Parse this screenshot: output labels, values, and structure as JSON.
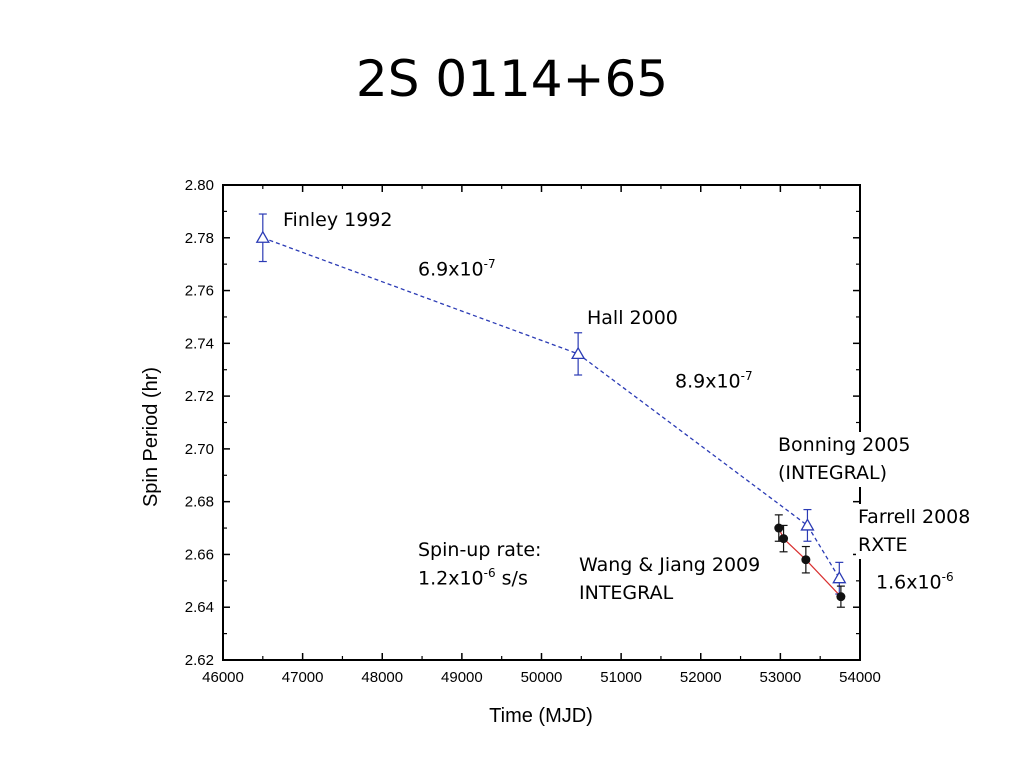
{
  "slide": {
    "title": "2S 0114+65"
  },
  "chart_data": {
    "type": "scatter",
    "xlabel": "Time (MJD)",
    "ylabel": "Spin Period (hr)",
    "xlim": [
      46000,
      54000
    ],
    "ylim": [
      2.62,
      2.8
    ],
    "xticks": [
      "46000",
      "47000",
      "48000",
      "49000",
      "50000",
      "51000",
      "52000",
      "53000",
      "54000"
    ],
    "yticks": [
      "2.62",
      "2.64",
      "2.66",
      "2.68",
      "2.70",
      "2.72",
      "2.74",
      "2.76",
      "2.78",
      "2.80"
    ],
    "series": [
      {
        "marker": "open-triangle",
        "color": "#2b3bb5",
        "line": "dashed",
        "points": [
          {
            "x": 46500,
            "y": 2.78,
            "err": 0.009
          },
          {
            "x": 50460,
            "y": 2.736,
            "err": 0.008
          },
          {
            "x": 53340,
            "y": 2.671,
            "err": 0.006
          },
          {
            "x": 53740,
            "y": 2.651,
            "err": 0.006
          }
        ]
      },
      {
        "marker": "filled-circle",
        "color": "#111111",
        "line": "solid",
        "line_color": "#d93030",
        "points": [
          {
            "x": 52980,
            "y": 2.67,
            "err": 0.005
          },
          {
            "x": 53040,
            "y": 2.666,
            "err": 0.005
          },
          {
            "x": 53320,
            "y": 2.658,
            "err": 0.005
          },
          {
            "x": 53760,
            "y": 2.644,
            "err": 0.004
          }
        ]
      }
    ],
    "annotations": {
      "finley": "Finley 1992",
      "rate1_base": "6.9x10",
      "rate1_exp": "-7",
      "hall": "Hall 2000",
      "rate2_base": "8.9x10",
      "rate2_exp": "-7",
      "bonning_1": "Bonning 2005",
      "bonning_2": "(INTEGRAL)",
      "farrell_1": "Farrell 2008",
      "farrell_2": "RXTE",
      "rate3_base": "1.6x10",
      "rate3_exp": "-6",
      "spinup_1": "Spin-up rate:",
      "spinup_2_base": "1.2x10",
      "spinup_2_exp": "-6",
      "spinup_2_unit": " s/s",
      "wang_1": "Wang & Jiang 2009",
      "wang_2": "INTEGRAL"
    }
  }
}
